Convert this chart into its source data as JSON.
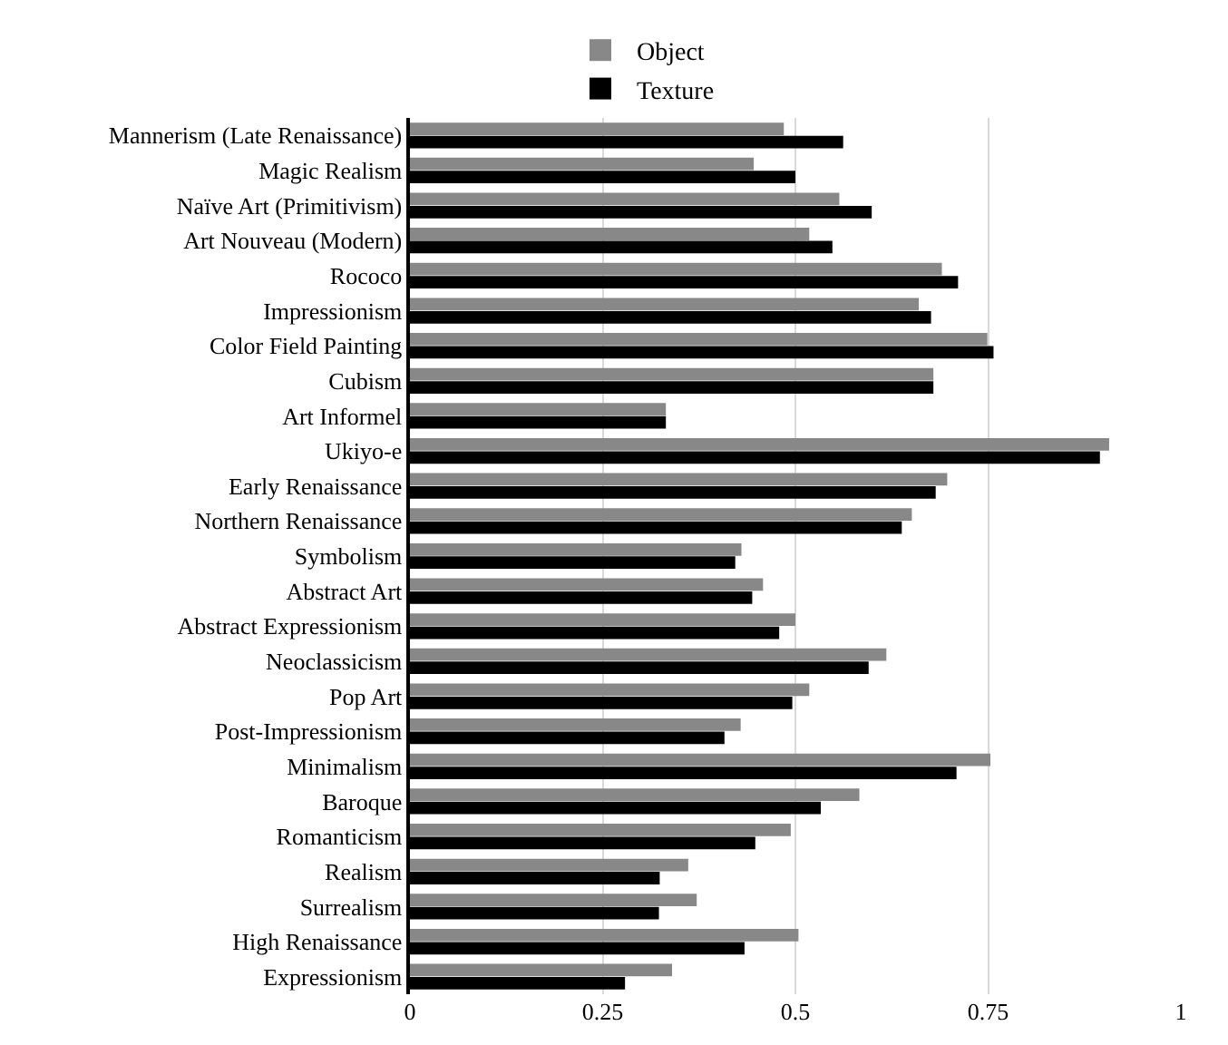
{
  "chart_data": {
    "type": "bar",
    "orientation": "horizontal",
    "categories": [
      "Mannerism (Late Renaissance)",
      "Magic Realism",
      "Naïve Art (Primitivism)",
      "Art Nouveau (Modern)",
      "Rococo",
      "Impressionism",
      "Color Field Painting",
      "Cubism",
      "Art Informel",
      "Ukiyo-e",
      "Early Renaissance",
      "Northern Renaissance",
      "Symbolism",
      "Abstract Art",
      "Abstract Expressionism",
      "Neoclassicism",
      "Pop Art",
      "Post-Impressionism",
      "Minimalism",
      "Baroque",
      "Romanticism",
      "Realism",
      "Surrealism",
      "High Renaissance",
      "Expressionism"
    ],
    "series": [
      {
        "name": "Object",
        "color": "#888888",
        "values": [
          0.485,
          0.446,
          0.557,
          0.518,
          0.69,
          0.66,
          0.749,
          0.679,
          0.332,
          0.907,
          0.697,
          0.651,
          0.43,
          0.458,
          0.5,
          0.618,
          0.518,
          0.429,
          0.753,
          0.583,
          0.494,
          0.361,
          0.372,
          0.504,
          0.34
        ]
      },
      {
        "name": "Texture",
        "color": "#000000",
        "values": [
          0.562,
          0.5,
          0.599,
          0.548,
          0.711,
          0.676,
          0.757,
          0.679,
          0.332,
          0.895,
          0.682,
          0.638,
          0.422,
          0.444,
          0.479,
          0.595,
          0.496,
          0.408,
          0.709,
          0.533,
          0.448,
          0.324,
          0.323,
          0.434,
          0.279
        ]
      }
    ],
    "xlim": [
      0,
      1
    ],
    "xticks": [
      0,
      0.25,
      0.5,
      0.75,
      1
    ],
    "grid": "x",
    "legend": "top"
  }
}
